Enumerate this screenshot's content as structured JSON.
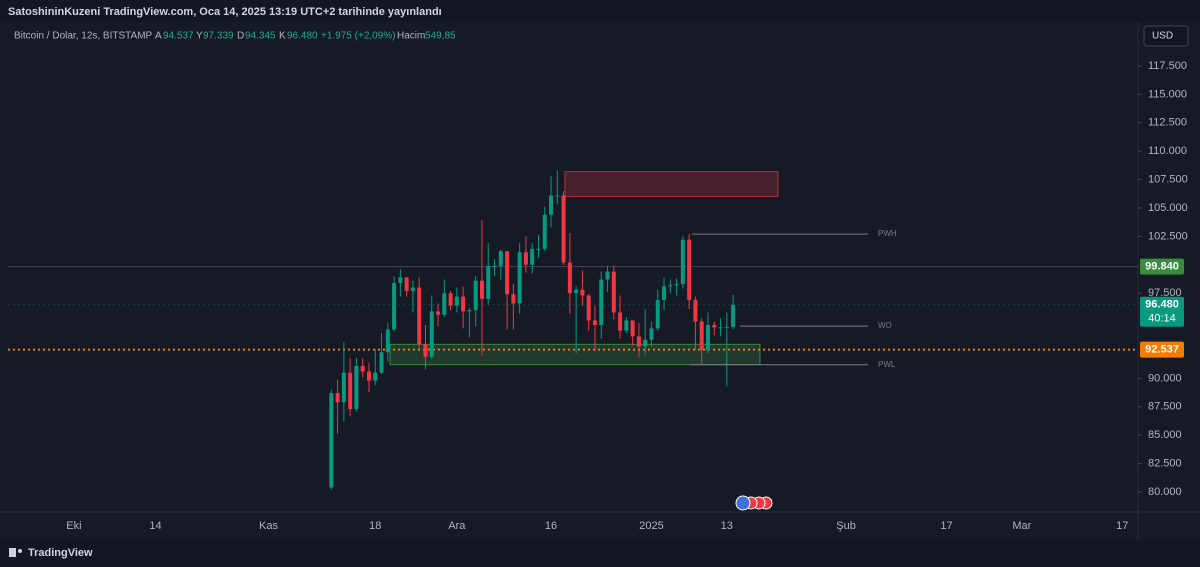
{
  "header": {
    "title": "SatoshininKuzeni TradingView.com, Oca 14, 2025 13:19 UTC+2 tarihinde yayınlandı",
    "symbol": "Bitcoin / Dolar, 12s, BITSTAMP",
    "ohlc": [
      {
        "label": "A",
        "value": "94.537"
      },
      {
        "label": "Y",
        "value": "97.339"
      },
      {
        "label": "D",
        "value": "94.345"
      },
      {
        "label": "K",
        "value": "96.480"
      }
    ],
    "change": "+1.975 (+2,09%)",
    "volume_label": "Hacim",
    "volume": "549,85"
  },
  "currency": "USD",
  "footer": "TradingView",
  "chart_data": {
    "type": "candlestick",
    "up_color": "#089981",
    "down_color": "#f23645",
    "categories": [
      null,
      null,
      null,
      null,
      null,
      null,
      null,
      null,
      null,
      null,
      "Eki",
      null,
      null,
      null,
      null,
      null,
      null,
      null,
      null,
      null,
      null,
      null,
      null,
      "14",
      null,
      null,
      null,
      null,
      null,
      null,
      null,
      null,
      null,
      null,
      null,
      null,
      null,
      null,
      null,
      null,
      null,
      "Kas",
      null,
      null,
      null,
      null,
      null,
      null,
      null,
      null,
      null,
      null,
      null,
      null,
      null,
      null,
      null,
      null,
      "18",
      null,
      null,
      null,
      null,
      null,
      null,
      null,
      null,
      null,
      null,
      null,
      null,
      "Ara",
      null,
      null,
      null,
      null,
      null,
      null,
      null,
      null,
      null,
      null,
      null,
      null,
      null,
      null,
      "16",
      null,
      null,
      null,
      null,
      null,
      null,
      null,
      null,
      null,
      null,
      null,
      null,
      null,
      null,
      null,
      "2025",
      null,
      null,
      null,
      null,
      null,
      null,
      null,
      null,
      null,
      null,
      null,
      "13",
      null,
      null,
      null,
      null,
      null,
      null,
      null,
      null,
      null,
      null,
      null,
      null,
      null,
      null,
      null,
      null,
      null,
      null,
      "Şub",
      null,
      null,
      null,
      null,
      null,
      null,
      null,
      null,
      null,
      null,
      null,
      null,
      null,
      null,
      null,
      "17",
      null,
      null,
      null,
      null,
      null,
      null,
      null,
      null,
      null,
      null,
      null,
      "Mar",
      null,
      null,
      null,
      null,
      null,
      null,
      null,
      null,
      null,
      null,
      null,
      null,
      null,
      null,
      null,
      "17",
      null,
      null
    ],
    "open": [
      null,
      null,
      null,
      null,
      null,
      null,
      null,
      null,
      null,
      null,
      null,
      null,
      null,
      null,
      null,
      null,
      null,
      null,
      null,
      null,
      null,
      null,
      null,
      null,
      null,
      null,
      null,
      null,
      null,
      null,
      null,
      null,
      null,
      null,
      null,
      null,
      null,
      null,
      null,
      null,
      null,
      null,
      null,
      null,
      null,
      null,
      null,
      null,
      null,
      null,
      null,
      80400,
      88700,
      87900,
      90500,
      87300,
      91100,
      90600,
      89800,
      90500,
      92300,
      94300,
      98400,
      98900,
      97700,
      98000,
      93000,
      91900,
      95900,
      95600,
      97500,
      96400,
      97200,
      95900,
      96000,
      98600,
      97000,
      99900,
      99900,
      101200,
      97400,
      96600,
      101100,
      100000,
      101400,
      101400,
      104400,
      106100,
      106100,
      100200,
      97500,
      97800,
      97300,
      95100,
      94700,
      98700,
      99400,
      95800,
      94200,
      95100,
      93700,
      92800,
      93400,
      94400,
      96900,
      98100,
      98200,
      98300,
      102200,
      96900,
      95000,
      92500,
      94700,
      94500,
      94500,
      94537,
      null,
      null,
      null,
      null,
      null,
      null,
      null,
      null,
      null,
      null,
      null,
      null,
      null,
      null,
      null,
      null,
      null,
      null,
      null,
      null,
      null,
      null,
      null,
      null,
      null,
      null,
      null,
      null,
      null,
      null,
      null,
      null,
      null,
      null,
      null,
      null,
      null,
      null,
      null,
      null,
      null,
      null,
      null,
      null,
      null,
      null,
      null,
      null,
      null,
      null,
      null,
      null,
      null,
      null,
      null,
      null,
      null,
      null,
      null,
      null,
      null,
      null,
      null,
      null
    ],
    "high": [
      null,
      null,
      null,
      null,
      null,
      null,
      null,
      null,
      null,
      null,
      null,
      null,
      null,
      null,
      null,
      null,
      null,
      null,
      null,
      null,
      null,
      null,
      null,
      null,
      null,
      null,
      null,
      null,
      null,
      null,
      null,
      null,
      null,
      null,
      null,
      null,
      null,
      null,
      null,
      null,
      null,
      null,
      null,
      null,
      null,
      null,
      null,
      null,
      null,
      null,
      null,
      89000,
      89900,
      93200,
      91800,
      91800,
      91800,
      91400,
      92600,
      94000,
      94900,
      99000,
      99600,
      98900,
      98600,
      98900,
      94700,
      97300,
      96600,
      98700,
      97700,
      98000,
      98100,
      96200,
      99000,
      103900,
      101900,
      100500,
      101300,
      101200,
      98300,
      101900,
      102500,
      101900,
      102600,
      105100,
      107800,
      108300,
      106500,
      102800,
      98100,
      99500,
      97400,
      96400,
      99400,
      99900,
      99900,
      97300,
      95400,
      95100,
      94900,
      96100,
      95000,
      97800,
      98900,
      98700,
      98800,
      102500,
      102700,
      97200,
      95300,
      95800,
      95000,
      95300,
      95800,
      97339,
      null,
      null,
      null,
      null,
      null,
      null,
      null,
      null,
      null,
      null,
      null,
      null,
      null,
      null,
      null,
      null,
      null,
      null,
      null,
      null,
      null,
      null,
      null,
      null,
      null,
      null,
      null,
      null,
      null,
      null,
      null,
      null,
      null,
      null,
      null,
      null,
      null,
      null,
      null,
      null,
      null,
      null,
      null,
      null,
      null,
      null,
      null,
      null,
      null,
      null,
      null,
      null,
      null,
      null,
      null,
      null,
      null,
      null,
      null,
      null,
      null,
      null,
      null,
      null
    ],
    "low": [
      null,
      null,
      null,
      null,
      null,
      null,
      null,
      null,
      null,
      null,
      null,
      null,
      null,
      null,
      null,
      null,
      null,
      null,
      null,
      null,
      null,
      null,
      null,
      null,
      null,
      null,
      null,
      null,
      null,
      null,
      null,
      null,
      null,
      null,
      null,
      null,
      null,
      null,
      null,
      null,
      null,
      null,
      null,
      null,
      null,
      null,
      null,
      null,
      null,
      null,
      null,
      80200,
      85100,
      86200,
      86700,
      87100,
      90100,
      88800,
      89400,
      90400,
      91500,
      94100,
      97200,
      97200,
      95800,
      92600,
      90800,
      91700,
      94600,
      95400,
      96000,
      95800,
      94400,
      93600,
      94600,
      92000,
      96500,
      99000,
      98700,
      94300,
      94300,
      95700,
      99300,
      99200,
      100600,
      101200,
      103300,
      105300,
      100000,
      95700,
      92200,
      96400,
      94200,
      92400,
      93500,
      97600,
      95200,
      93500,
      94000,
      92900,
      91900,
      92000,
      92800,
      94200,
      96000,
      97500,
      97300,
      97900,
      96100,
      92500,
      91200,
      92200,
      93800,
      93700,
      89300,
      94345,
      null,
      null,
      null,
      null,
      null,
      null,
      null,
      null,
      null,
      null,
      null,
      null,
      null,
      null,
      null,
      null,
      null,
      null,
      null,
      null,
      null,
      null,
      null,
      null,
      null,
      null,
      null,
      null,
      null,
      null,
      null,
      null,
      null,
      null,
      null,
      null,
      null,
      null,
      null,
      null,
      null,
      null,
      null,
      null,
      null,
      null,
      null,
      null,
      null,
      null,
      null,
      null,
      null,
      null,
      null,
      null,
      null,
      null,
      null,
      null,
      null,
      null,
      null,
      null
    ],
    "close": [
      null,
      null,
      null,
      null,
      null,
      null,
      null,
      null,
      null,
      null,
      null,
      null,
      null,
      null,
      null,
      null,
      null,
      null,
      null,
      null,
      null,
      null,
      null,
      null,
      null,
      null,
      null,
      null,
      null,
      null,
      null,
      null,
      null,
      null,
      null,
      null,
      null,
      null,
      null,
      null,
      null,
      null,
      null,
      null,
      null,
      null,
      null,
      null,
      null,
      null,
      null,
      88700,
      87900,
      90500,
      87300,
      91100,
      90600,
      89800,
      90500,
      92300,
      94300,
      98400,
      98900,
      97700,
      98000,
      93000,
      91900,
      95900,
      95600,
      97500,
      96400,
      97200,
      95900,
      96000,
      98600,
      97000,
      99900,
      99900,
      101200,
      97400,
      96600,
      101100,
      100000,
      101400,
      101400,
      104400,
      106100,
      106100,
      100200,
      97500,
      97800,
      97300,
      95100,
      94700,
      98700,
      99400,
      95800,
      94200,
      95100,
      93700,
      92800,
      93400,
      94400,
      96900,
      98100,
      98200,
      98300,
      102200,
      96900,
      95000,
      92500,
      94700,
      94500,
      94500,
      94537,
      96480,
      null,
      null,
      null,
      null,
      null,
      null,
      null,
      null,
      null,
      null,
      null,
      null,
      null,
      null,
      null,
      null,
      null,
      null,
      null,
      null,
      null,
      null,
      null,
      null,
      null,
      null,
      null,
      null,
      null,
      null,
      null,
      null,
      null,
      null,
      null,
      null,
      null,
      null,
      null,
      null,
      null,
      null,
      null,
      null,
      null,
      null,
      null,
      null,
      null,
      null,
      null,
      null,
      null,
      null,
      null,
      null,
      null,
      null,
      null,
      null,
      null,
      null,
      null,
      null
    ],
    "ylim": [
      78240,
      119080
    ],
    "yticks": [
      {
        "value": 80000,
        "label": "80.000"
      },
      {
        "value": 82500,
        "label": "82.500"
      },
      {
        "value": 85000,
        "label": "85.000"
      },
      {
        "value": 87500,
        "label": "87.500"
      },
      {
        "value": 90000,
        "label": "90.000"
      },
      {
        "value": 97500,
        "label": "97.500"
      },
      {
        "value": 102500,
        "label": "102.500"
      },
      {
        "value": 105000,
        "label": "105.000"
      },
      {
        "value": 107500,
        "label": "107.500"
      },
      {
        "value": 110000,
        "label": "110.000"
      },
      {
        "value": 112500,
        "label": "112.500"
      },
      {
        "value": 115000,
        "label": "115.000"
      },
      {
        "value": 117500,
        "label": "117.500"
      }
    ],
    "grid": false,
    "levels": [
      {
        "value": 99840,
        "label": "99.840",
        "color": "#388e3c",
        "line": "solid"
      },
      {
        "value": 96480,
        "label": "96.480",
        "color": "#089981",
        "line": "dotted",
        "countdown": "40:14"
      },
      {
        "value": 92537,
        "label": "92.537",
        "color": "#f57c00",
        "line": "dotted"
      }
    ],
    "annotations": [
      {
        "text": "PWH",
        "value": 102700
      },
      {
        "text": "WO",
        "value": 94600
      },
      {
        "text": "PWL",
        "value": 91200
      }
    ],
    "zones": [
      {
        "low": 106000,
        "high": 108200,
        "color": "#f23645"
      },
      {
        "low": 91200,
        "high": 93000,
        "color": "#4caf50"
      }
    ]
  }
}
